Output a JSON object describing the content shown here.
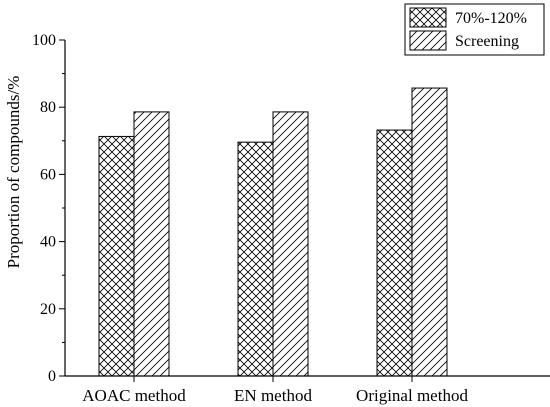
{
  "chart_data": {
    "type": "bar",
    "categories": [
      "AOAC method",
      "EN method",
      "Original method"
    ],
    "series": [
      {
        "name": "70%-120%",
        "values": [
          71.3,
          69.6,
          73.2
        ],
        "pattern": "crosshatch"
      },
      {
        "name": "Screening",
        "values": [
          78.6,
          78.6,
          85.7
        ],
        "pattern": "diagonal"
      }
    ],
    "title": "",
    "xlabel": "",
    "ylabel": "Proportion of compounds/%",
    "ylim": [
      0,
      100
    ],
    "yticks": [
      "0",
      "20",
      "40",
      "60",
      "80",
      "100"
    ],
    "grid": false,
    "legend_position": "top-right"
  }
}
